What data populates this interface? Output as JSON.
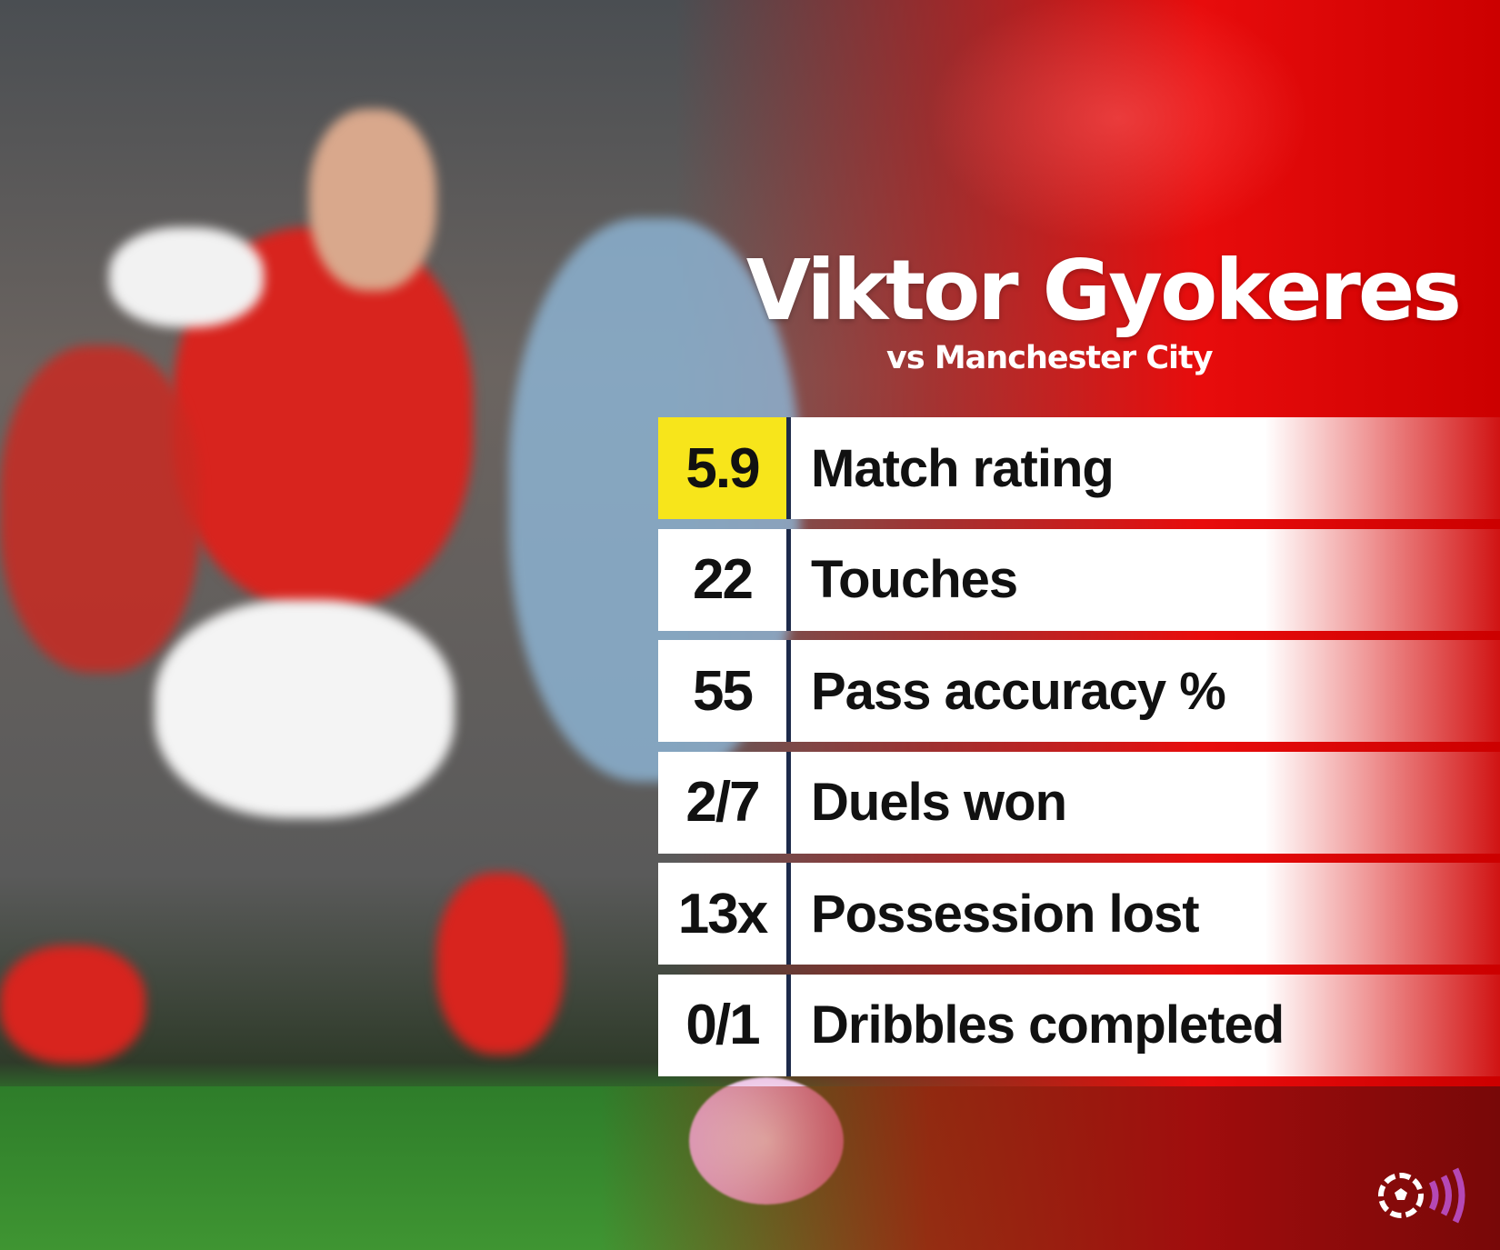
{
  "header": {
    "player_name": "Viktor Gyokeres",
    "opponent": "vs Manchester City"
  },
  "stats": [
    {
      "value": "5.9",
      "label": "Match rating",
      "highlight": true
    },
    {
      "value": "22",
      "label": "Touches"
    },
    {
      "value": "55",
      "label": "Pass accuracy %"
    },
    {
      "value": "2/7",
      "label": "Duels won"
    },
    {
      "value": "13x",
      "label": "Possession lost"
    },
    {
      "value": "0/1",
      "label": "Dribbles completed"
    }
  ],
  "colors": {
    "rating_highlight": "#f7e51b",
    "background_red": "#e80c0c",
    "logo_accent": "#b548b5"
  },
  "logo": {
    "icon": "football-broadcast-icon"
  }
}
